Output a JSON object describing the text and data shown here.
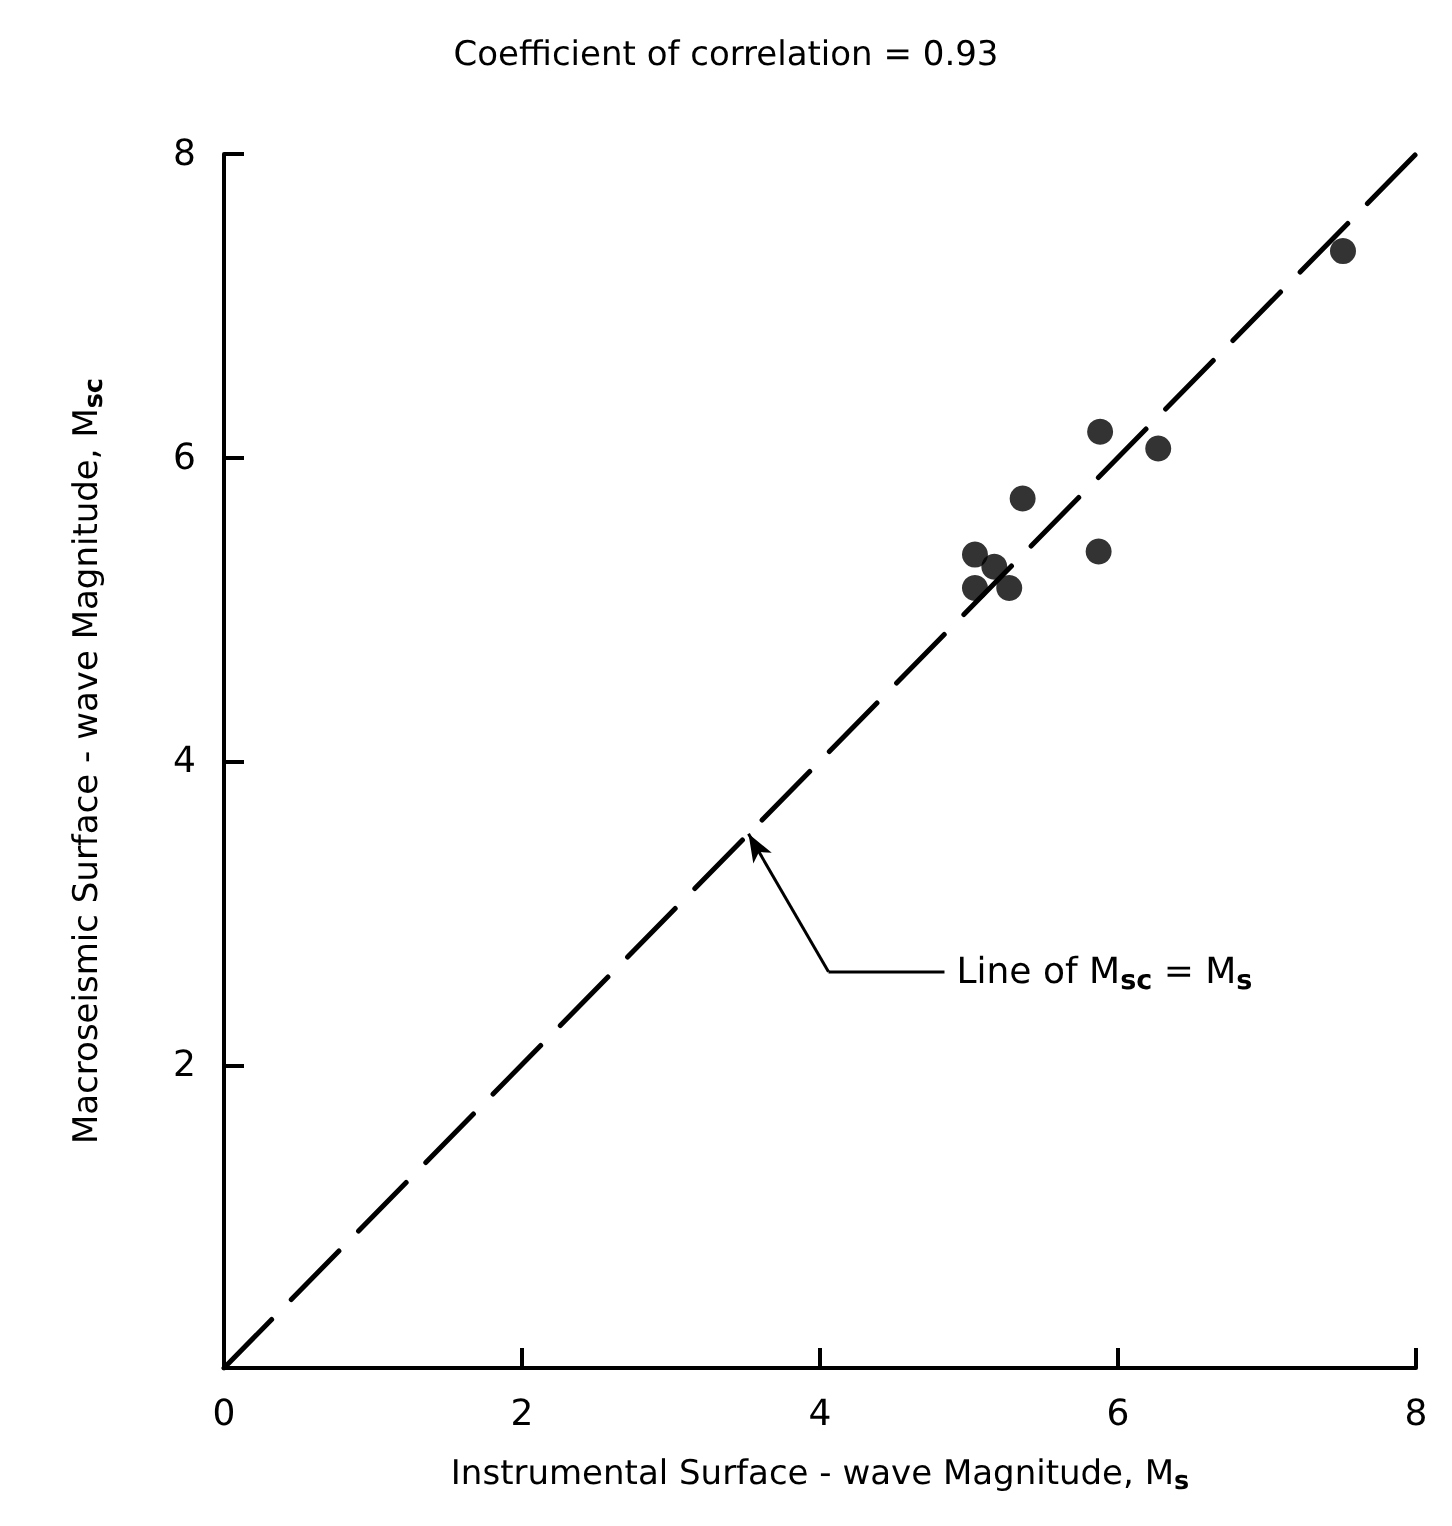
{
  "chart_data": {
    "type": "scatter",
    "title": "Coefficient of correlation = 0.93",
    "xlabel": "Instrumental Surface - wave Magnitude, M$_{s}$",
    "ylabel": "Macroseismic Surface - wave Magnitude, M$_{sc}$",
    "xlim": [
      0,
      8
    ],
    "ylim": [
      0,
      8
    ],
    "xticks": [
      {
        "value": 0,
        "label": "0"
      },
      2,
      4,
      6,
      8
    ],
    "yticks": [
      2,
      4,
      6,
      8
    ],
    "grid": false,
    "marker": "circle",
    "series": [
      {
        "color": "#000000",
        "x": [
          5.88,
          6.27,
          5.36,
          5.04,
          5.17,
          5.04,
          5.27,
          5.87,
          7.51
        ],
        "values": [
          6.17,
          6.06,
          5.73,
          5.36,
          5.28,
          5.14,
          5.14,
          5.38,
          7.36
        ]
      },
      {
        "type": "line",
        "color": "#000000",
        "line_style": "dashed",
        "marker": "none",
        "x": [
          0,
          8
        ],
        "values": [
          0,
          8
        ]
      }
    ],
    "annotations": [
      "Line of M$_{sc}$ = M$_{s}$"
    ]
  }
}
